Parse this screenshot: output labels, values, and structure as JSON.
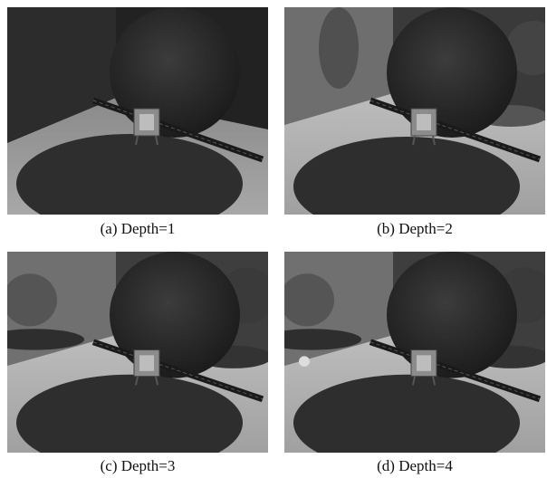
{
  "panels": [
    {
      "caption": "(a) Depth=1"
    },
    {
      "caption": "(b) Depth=2"
    },
    {
      "caption": "(c) Depth=3"
    },
    {
      "caption": "(d) Depth=4"
    }
  ]
}
